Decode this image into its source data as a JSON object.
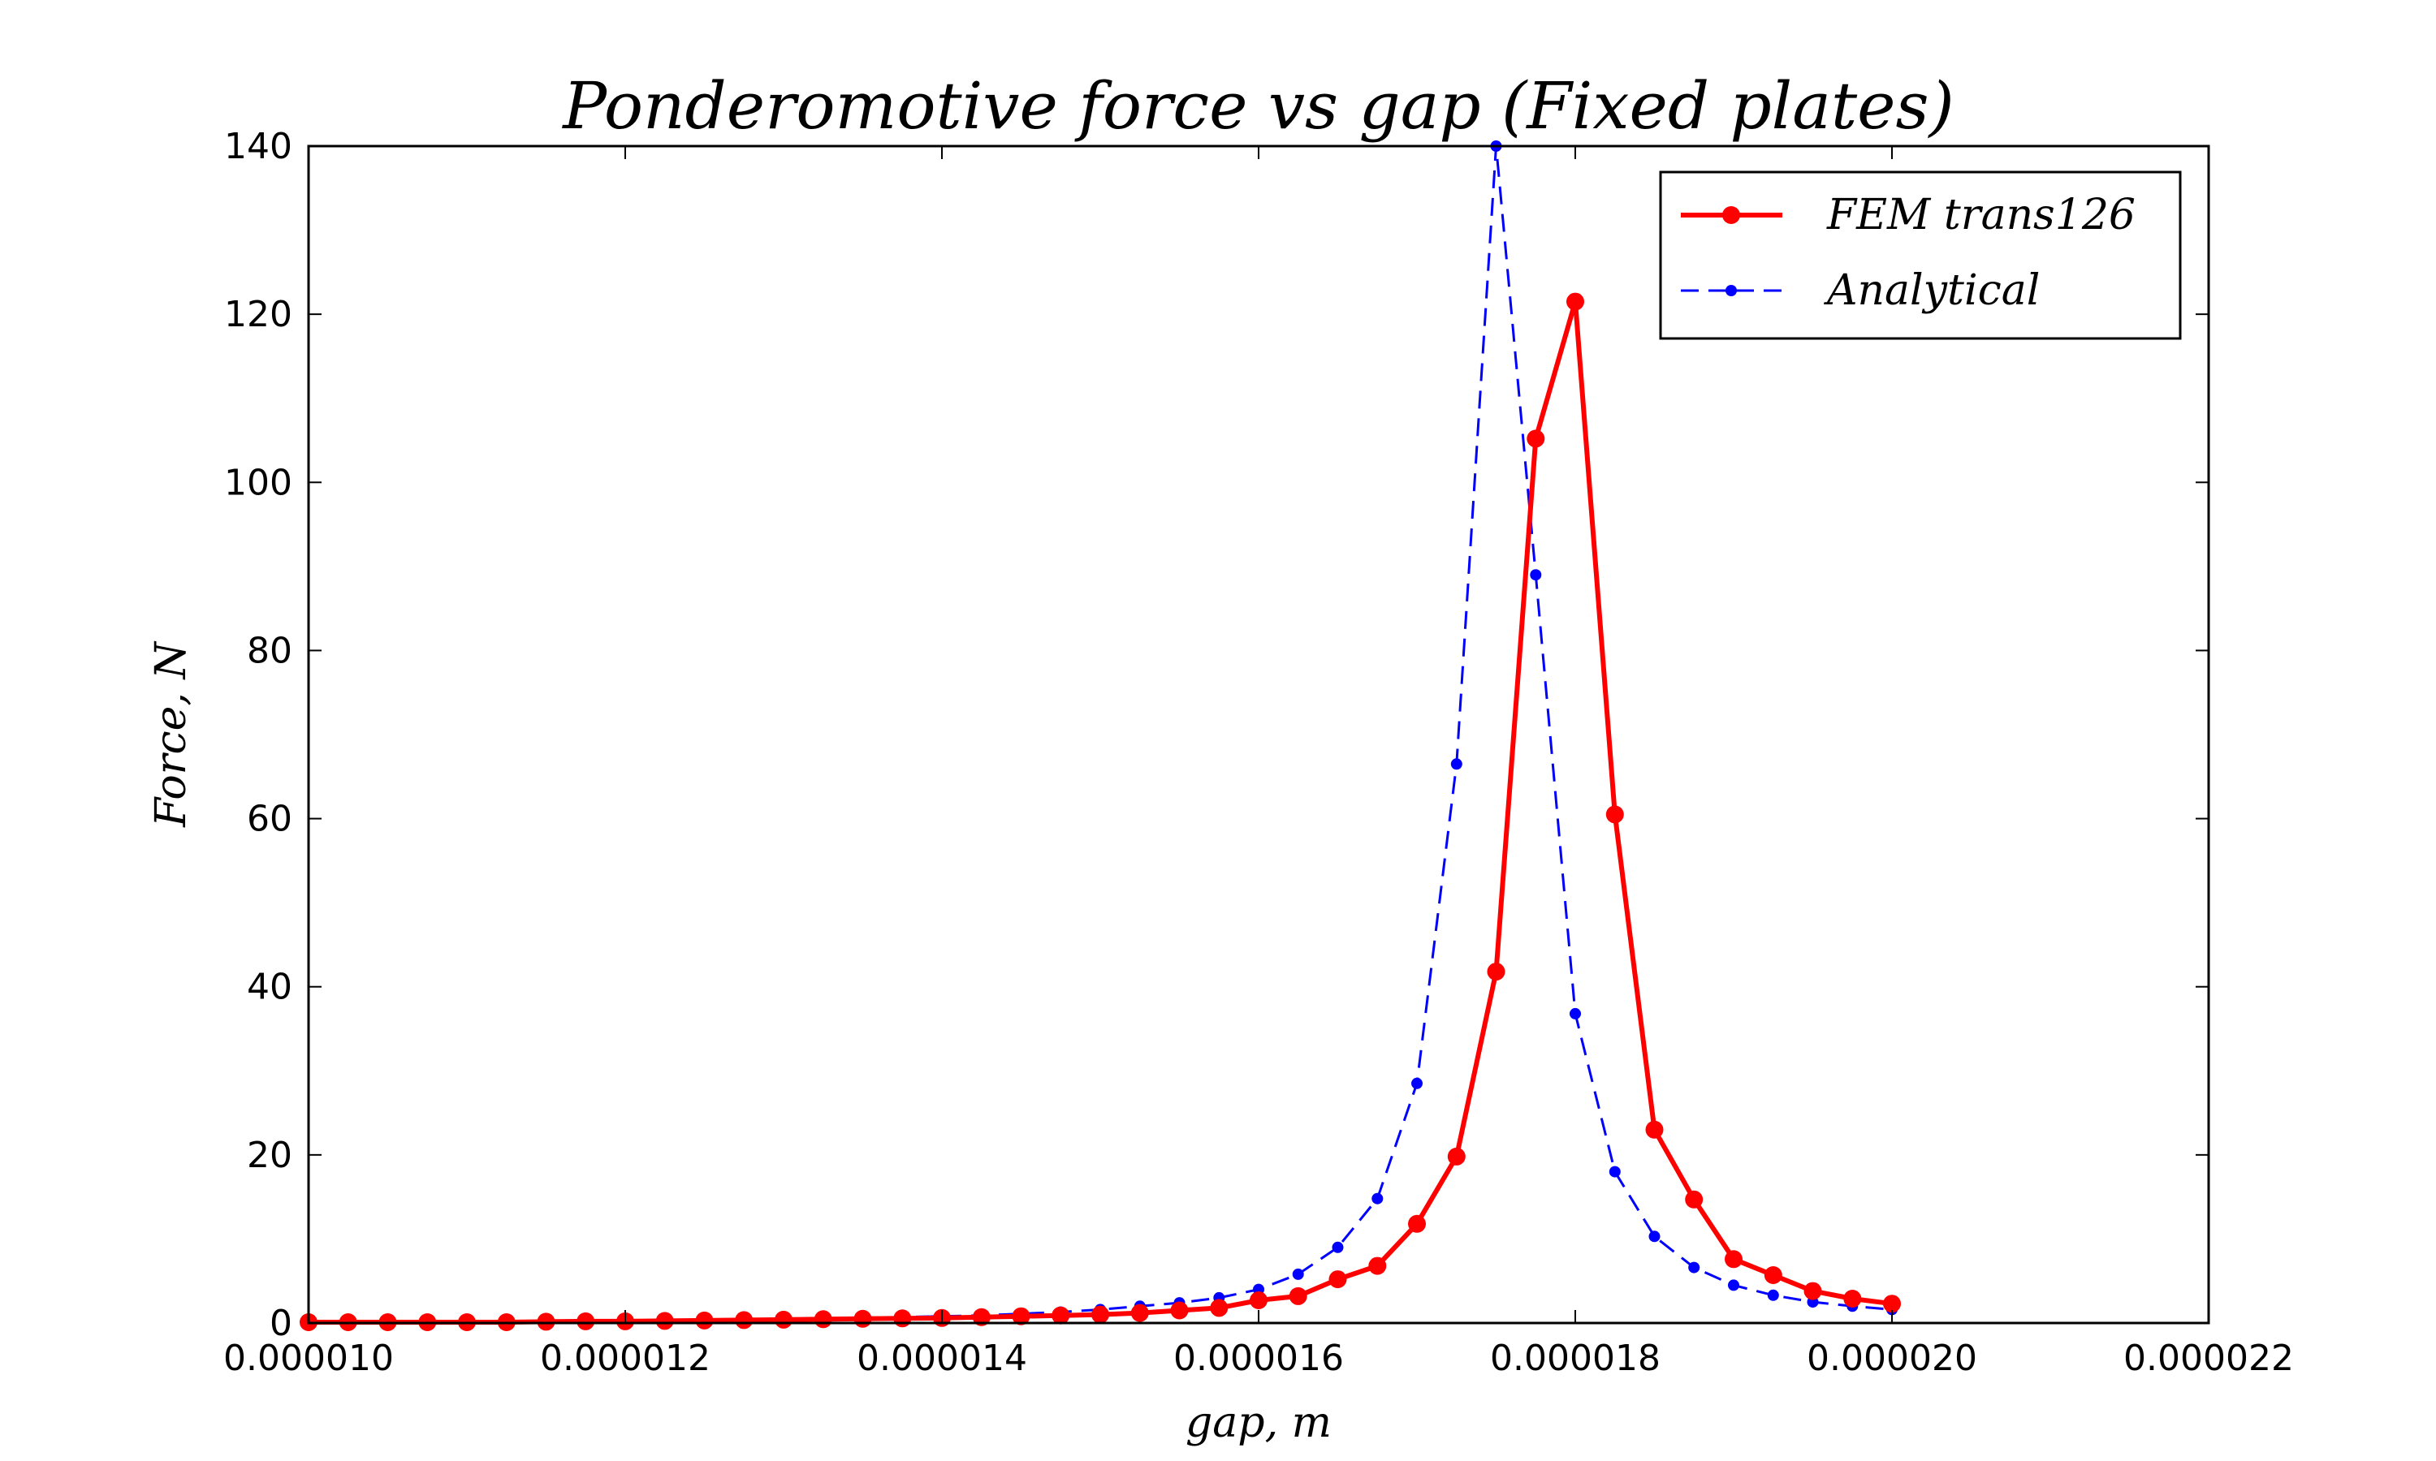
{
  "chart_data": {
    "type": "line",
    "title": "Ponderomotive force vs gap (Fixed plates)",
    "xlabel": "gap, m",
    "ylabel": "Force, N",
    "xlim": [
      1e-05,
      2.2e-05
    ],
    "ylim": [
      0,
      140
    ],
    "xticks": [
      1e-05,
      1.2e-05,
      1.4e-05,
      1.6e-05,
      1.8e-05,
      2e-05,
      2.2e-05
    ],
    "xtick_labels": [
      "0.000010",
      "0.000012",
      "0.000014",
      "0.000016",
      "0.000018",
      "0.000020",
      "0.000022"
    ],
    "yticks": [
      0,
      20,
      40,
      60,
      80,
      100,
      120,
      140
    ],
    "ytick_labels": [
      "0",
      "20",
      "40",
      "60",
      "80",
      "100",
      "120",
      "140"
    ],
    "grid": false,
    "legend_position": "top-right",
    "series": [
      {
        "name": "FEM trans126",
        "color": "#ff0000",
        "style": "solid-circle-markers",
        "x": [
          1e-05,
          1.025e-05,
          1.05e-05,
          1.075e-05,
          1.1e-05,
          1.125e-05,
          1.15e-05,
          1.175e-05,
          1.2e-05,
          1.225e-05,
          1.25e-05,
          1.275e-05,
          1.3e-05,
          1.325e-05,
          1.35e-05,
          1.375e-05,
          1.4e-05,
          1.425e-05,
          1.45e-05,
          1.475e-05,
          1.5e-05,
          1.525e-05,
          1.55e-05,
          1.575e-05,
          1.6e-05,
          1.625e-05,
          1.65e-05,
          1.675e-05,
          1.7e-05,
          1.725e-05,
          1.75e-05,
          1.775e-05,
          1.8e-05,
          1.825e-05,
          1.85e-05,
          1.875e-05,
          1.9e-05,
          1.925e-05,
          1.95e-05,
          1.975e-05,
          2e-05
        ],
        "y": [
          0.1,
          0.1,
          0.1,
          0.1,
          0.1,
          0.1,
          0.15,
          0.2,
          0.2,
          0.25,
          0.3,
          0.35,
          0.4,
          0.45,
          0.5,
          0.55,
          0.6,
          0.7,
          0.8,
          0.9,
          1.0,
          1.2,
          1.5,
          1.8,
          2.7,
          3.2,
          5.2,
          6.8,
          11.8,
          19.8,
          41.8,
          105.2,
          121.5,
          60.5,
          23.0,
          14.7,
          7.6,
          5.7,
          3.8,
          2.9,
          2.3
        ]
      },
      {
        "name": "Analytical",
        "color": "#0000ff",
        "style": "dashed-dot-markers",
        "x": [
          1e-05,
          1.025e-05,
          1.05e-05,
          1.075e-05,
          1.1e-05,
          1.125e-05,
          1.15e-05,
          1.175e-05,
          1.2e-05,
          1.225e-05,
          1.25e-05,
          1.275e-05,
          1.3e-05,
          1.325e-05,
          1.35e-05,
          1.375e-05,
          1.4e-05,
          1.425e-05,
          1.45e-05,
          1.475e-05,
          1.5e-05,
          1.525e-05,
          1.55e-05,
          1.575e-05,
          1.6e-05,
          1.625e-05,
          1.65e-05,
          1.675e-05,
          1.7e-05,
          1.725e-05,
          1.75e-05,
          1.775e-05,
          1.8e-05,
          1.825e-05,
          1.85e-05,
          1.875e-05,
          1.9e-05,
          1.925e-05,
          1.95e-05,
          1.975e-05,
          2e-05
        ],
        "y": [
          0.1,
          0.1,
          0.12,
          0.14,
          0.15,
          0.17,
          0.2,
          0.22,
          0.25,
          0.3,
          0.35,
          0.4,
          0.45,
          0.5,
          0.6,
          0.7,
          0.8,
          0.9,
          1.1,
          1.3,
          1.6,
          2.0,
          2.4,
          3.0,
          4.0,
          5.8,
          9.0,
          14.8,
          28.5,
          66.5,
          140,
          89.0,
          36.8,
          18.0,
          10.3,
          6.6,
          4.5,
          3.3,
          2.5,
          2.0,
          1.6
        ]
      }
    ]
  }
}
